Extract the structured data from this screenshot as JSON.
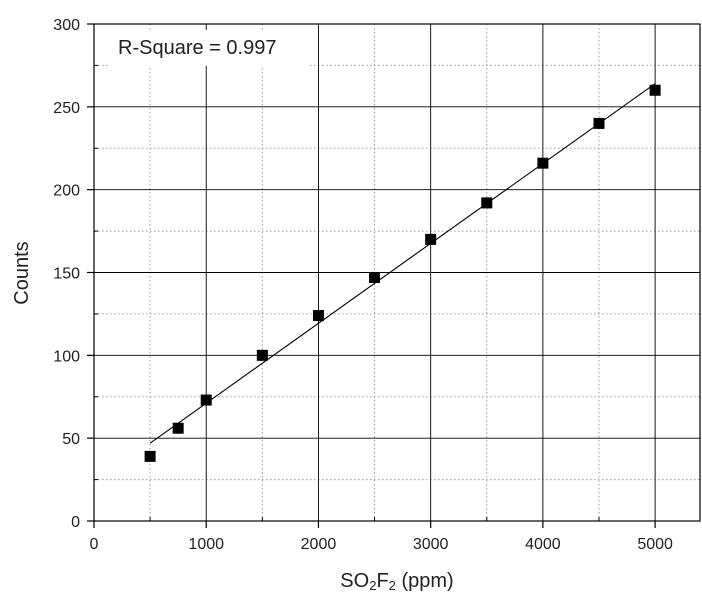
{
  "chart_data": {
    "type": "scatter",
    "annotation": "R-Square = 0.997",
    "xlabel": {
      "prefix": "SO",
      "sub1": "2",
      "mid": "F",
      "sub2": "2",
      "suffix": " (ppm)"
    },
    "ylabel": "Counts",
    "xlim": [
      0,
      5400
    ],
    "ylim": [
      0,
      300
    ],
    "x_ticks": [
      0,
      1000,
      2000,
      3000,
      4000,
      5000
    ],
    "x_tick_labels": [
      "0",
      "1000",
      "2000",
      "3000",
      "4000",
      "5000"
    ],
    "y_ticks": [
      0,
      50,
      100,
      150,
      200,
      250,
      300
    ],
    "y_tick_labels": [
      "0",
      "50",
      "100",
      "150",
      "200",
      "250",
      "300"
    ],
    "grid": true,
    "series": [
      {
        "marker": "square",
        "x": [
          500,
          750,
          1000,
          1500,
          2000,
          2500,
          3000,
          3500,
          4000,
          4500,
          5000
        ],
        "y": [
          39,
          56,
          73,
          100,
          124,
          147,
          170,
          192,
          216,
          240,
          260
        ]
      }
    ],
    "fit_line": {
      "x": [
        500,
        5000
      ],
      "y": [
        47,
        264
      ]
    },
    "colors": {
      "marker": "#000000",
      "line": "#000000",
      "grid_major": "#000000",
      "grid_minor": "#9a9a9a"
    }
  }
}
